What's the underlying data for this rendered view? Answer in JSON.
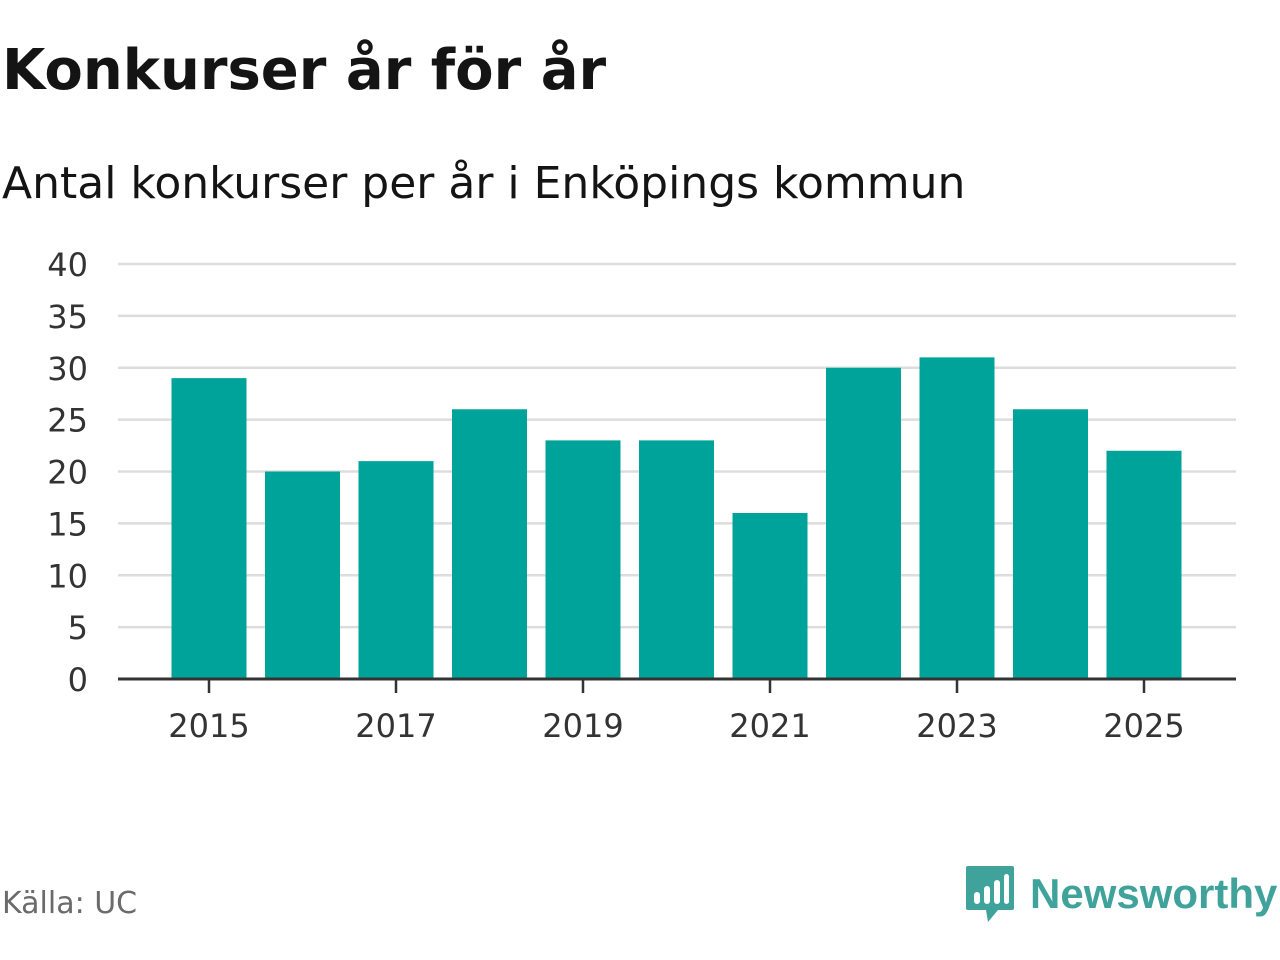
{
  "header": {
    "title": "Konkurser år för år",
    "subtitle": "Antal konkurser per år i Enköpings kommun"
  },
  "footer": {
    "source": "Källa: UC",
    "brand": "Newsworthy",
    "brand_icon": "newsworthy-logo-icon"
  },
  "colors": {
    "bar": "#00a39a",
    "grid": "#dddddd",
    "axis": "#333333",
    "tick_text": "#333333",
    "brand": "#3fa39b"
  },
  "chart_data": {
    "type": "bar",
    "title": "Konkurser år för år",
    "subtitle": "Antal konkurser per år i Enköpings kommun",
    "categories": [
      2015,
      2016,
      2017,
      2018,
      2019,
      2020,
      2021,
      2022,
      2023,
      2024,
      2025
    ],
    "values": [
      29,
      20,
      21,
      26,
      23,
      23,
      16,
      30,
      31,
      26,
      22
    ],
    "x_tick_labels": [
      "2015",
      "2017",
      "2019",
      "2021",
      "2023",
      "2025"
    ],
    "y_ticks": [
      0,
      5,
      10,
      15,
      20,
      25,
      30,
      35,
      40
    ],
    "ylim": [
      0,
      40
    ],
    "xlabel": "",
    "ylabel": "",
    "grid": true,
    "legend": "none"
  }
}
